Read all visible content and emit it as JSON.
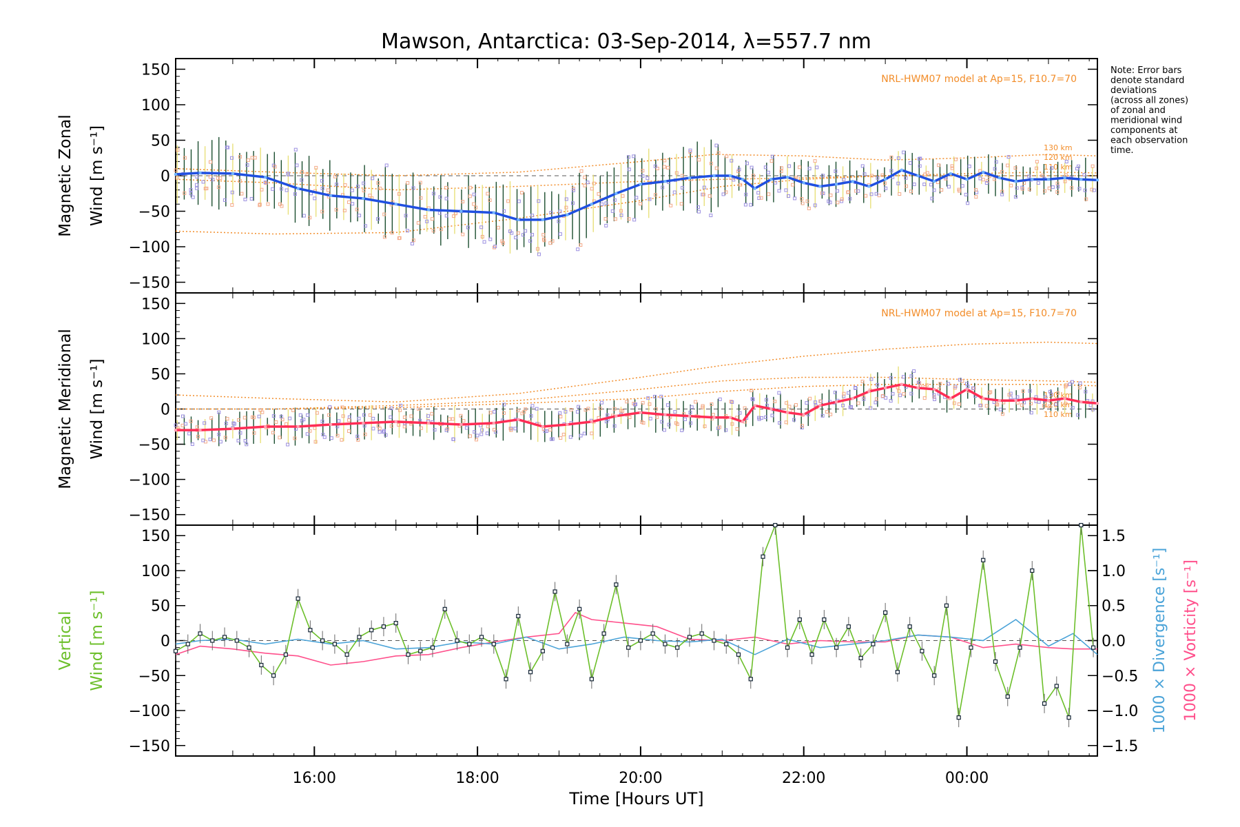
{
  "figure": {
    "title": "Mawson, Antarctica: 03-Sep-2014, λ=557.7 nm",
    "xlabel": "Time [Hours UT]",
    "x_ticks": [
      "16:00",
      "18:00",
      "20:00",
      "22:00",
      "00:00"
    ],
    "note": [
      "Note: Error bars",
      "denote standard",
      "deviations",
      "(across all zones)",
      "of zonal and",
      "meridional wind",
      "components at",
      "each observation",
      "time."
    ]
  },
  "colors": {
    "zonal": "#1f4fe0",
    "meridional": "#ff2d55",
    "vertical": "#6cbf2a",
    "divergence": "#4aa3d8",
    "vorticity": "#ff4f8b",
    "model": "#f28c28",
    "errorbar": "#1a4d2e",
    "zone_points": "#9b8fe0"
  },
  "chart_data": [
    {
      "type": "line",
      "panel": "zonal",
      "title": "",
      "ylabel": [
        "Magnetic Zonal",
        "Wind [m s⁻¹]"
      ],
      "ylim": [
        -165,
        165
      ],
      "y_ticks": [
        150,
        100,
        50,
        0,
        -50,
        -100,
        -150
      ],
      "xlim_hours": [
        14.3,
        25.6
      ],
      "annotation": "NRL-HWM07 model at Ap=15, F10.7=70",
      "model_labels": [
        "130 km",
        "120 km",
        "110 km"
      ],
      "series": [
        {
          "role": "mean-wind",
          "x": [
            14.3,
            14.6,
            15.0,
            15.4,
            15.8,
            16.2,
            16.6,
            17.0,
            17.4,
            17.8,
            18.2,
            18.5,
            18.8,
            19.1,
            19.4,
            19.7,
            20.0,
            20.3,
            20.6,
            20.9,
            21.1,
            21.25,
            21.4,
            21.6,
            21.8,
            22.0,
            22.2,
            22.4,
            22.6,
            22.8,
            23.0,
            23.2,
            23.4,
            23.6,
            23.8,
            24.0,
            24.2,
            24.4,
            24.6,
            24.8,
            25.0,
            25.2,
            25.4,
            25.6
          ],
          "y": [
            2,
            4,
            3,
            -2,
            -18,
            -28,
            -32,
            -40,
            -48,
            -50,
            -52,
            -62,
            -62,
            -55,
            -40,
            -25,
            -12,
            -8,
            -3,
            0,
            0,
            -5,
            -18,
            -5,
            -2,
            -10,
            -15,
            -12,
            -8,
            -15,
            -5,
            8,
            0,
            -8,
            3,
            -5,
            5,
            -3,
            -8,
            -5,
            -5,
            -3,
            -5,
            -6
          ]
        },
        {
          "role": "model-130km",
          "x": [
            14.3,
            15.5,
            17.0,
            18.5,
            20.0,
            20.9,
            22.0,
            23.0,
            24.0,
            25.0,
            25.6
          ],
          "y": [
            10,
            5,
            0,
            5,
            20,
            30,
            28,
            22,
            25,
            30,
            28
          ]
        },
        {
          "role": "model-120km",
          "x": [
            14.3,
            15.5,
            17.0,
            18.5,
            20.0,
            21.0,
            22.0,
            23.0,
            24.0,
            25.0,
            25.6
          ],
          "y": [
            -5,
            -10,
            -20,
            -15,
            -8,
            -5,
            -3,
            0,
            3,
            5,
            4
          ]
        },
        {
          "role": "model-110km",
          "x": [
            14.3,
            15.5,
            17.0,
            18.5,
            20.0,
            21.0,
            22.0,
            23.0,
            24.0,
            25.0,
            25.6
          ],
          "y": [
            -78,
            -82,
            -80,
            -60,
            -35,
            -15,
            -5,
            0,
            0,
            0,
            0
          ]
        }
      ]
    },
    {
      "type": "line",
      "panel": "meridional",
      "title": "",
      "ylabel": [
        "Magnetic Meridional",
        "Wind [m s⁻¹]"
      ],
      "ylim": [
        -165,
        165
      ],
      "y_ticks": [
        150,
        100,
        50,
        0,
        -50,
        -100,
        -150
      ],
      "xlim_hours": [
        14.3,
        25.6
      ],
      "annotation": "NRL-HWM07 model at Ap=15, F10.7=70",
      "model_labels": [
        "130 km",
        "120 km",
        "110 km"
      ],
      "series": [
        {
          "role": "mean-wind",
          "x": [
            14.3,
            14.6,
            15.0,
            15.4,
            15.8,
            16.2,
            16.6,
            17.0,
            17.4,
            17.8,
            18.2,
            18.5,
            18.8,
            19.1,
            19.4,
            19.7,
            20.0,
            20.3,
            20.6,
            20.9,
            21.1,
            21.25,
            21.4,
            21.6,
            21.8,
            22.0,
            22.2,
            22.4,
            22.6,
            22.8,
            23.0,
            23.2,
            23.4,
            23.6,
            23.8,
            24.0,
            24.2,
            24.4,
            24.6,
            24.8,
            25.0,
            25.2,
            25.4,
            25.6
          ],
          "y": [
            -30,
            -30,
            -28,
            -25,
            -25,
            -22,
            -20,
            -18,
            -20,
            -22,
            -20,
            -15,
            -25,
            -22,
            -18,
            -10,
            -5,
            -8,
            -10,
            -12,
            -12,
            -18,
            5,
            0,
            -5,
            -8,
            5,
            10,
            15,
            25,
            30,
            35,
            30,
            28,
            15,
            28,
            15,
            12,
            12,
            15,
            12,
            15,
            10,
            8
          ]
        },
        {
          "role": "model-130km",
          "x": [
            14.3,
            15.5,
            17.0,
            18.5,
            20.0,
            21.0,
            22.0,
            23.0,
            24.0,
            25.0,
            25.6
          ],
          "y": [
            20,
            15,
            10,
            22,
            45,
            62,
            75,
            85,
            92,
            95,
            93
          ]
        },
        {
          "role": "model-120km",
          "x": [
            14.3,
            15.5,
            17.0,
            18.5,
            20.0,
            21.0,
            22.0,
            23.0,
            24.0,
            25.0,
            25.6
          ],
          "y": [
            0,
            0,
            5,
            12,
            28,
            40,
            45,
            45,
            42,
            40,
            38
          ]
        },
        {
          "role": "model-110km",
          "x": [
            14.3,
            15.5,
            17.0,
            18.5,
            20.0,
            21.0,
            22.0,
            23.0,
            24.0,
            25.0,
            25.6
          ],
          "y": [
            0,
            0,
            2,
            8,
            15,
            25,
            32,
            35,
            35,
            35,
            33
          ]
        }
      ]
    },
    {
      "type": "line",
      "panel": "vertical",
      "title": "",
      "ylabel": [
        "Vertical",
        "Wind [m s⁻¹]"
      ],
      "ylim": [
        -165,
        165
      ],
      "y_ticks": [
        150,
        100,
        50,
        0,
        -50,
        -100,
        -150
      ],
      "y2label_divergence": "1000 × Divergence [s⁻¹]",
      "y2label_vorticity": "1000 × Vorticity [s⁻¹]",
      "y2lim": [
        -1.65,
        1.65
      ],
      "y2_ticks": [
        "1.5",
        "1.0",
        "0.5",
        "0.0",
        "−0.5",
        "−1.0",
        "−1.5"
      ],
      "xlim_hours": [
        14.3,
        25.6
      ],
      "series": [
        {
          "role": "vertical-wind",
          "axis": "left",
          "x": [
            14.3,
            14.45,
            14.6,
            14.75,
            14.9,
            15.05,
            15.2,
            15.35,
            15.5,
            15.65,
            15.8,
            15.95,
            16.1,
            16.25,
            16.4,
            16.55,
            16.7,
            16.85,
            17.0,
            17.15,
            17.3,
            17.45,
            17.6,
            17.75,
            17.9,
            18.05,
            18.2,
            18.35,
            18.5,
            18.65,
            18.8,
            18.95,
            19.1,
            19.25,
            19.4,
            19.55,
            19.7,
            19.85,
            20.0,
            20.15,
            20.3,
            20.45,
            20.6,
            20.75,
            20.9,
            21.05,
            21.2,
            21.35,
            21.5,
            21.65,
            21.8,
            21.95,
            22.1,
            22.25,
            22.4,
            22.55,
            22.7,
            22.85,
            23.0,
            23.15,
            23.3,
            23.45,
            23.6,
            23.75,
            23.9,
            24.05,
            24.2,
            24.35,
            24.5,
            24.65,
            24.8,
            24.95,
            25.1,
            25.25,
            25.4,
            25.55
          ],
          "y": [
            -15,
            -5,
            10,
            0,
            5,
            0,
            -10,
            -35,
            -50,
            -20,
            60,
            15,
            0,
            -5,
            -20,
            5,
            15,
            20,
            25,
            -20,
            -15,
            -10,
            45,
            0,
            -5,
            5,
            -5,
            -55,
            35,
            -45,
            -15,
            70,
            -5,
            45,
            -55,
            10,
            80,
            -10,
            0,
            10,
            -5,
            -10,
            5,
            10,
            0,
            -5,
            -20,
            -55,
            120,
            165,
            -10,
            30,
            -20,
            30,
            -10,
            20,
            -25,
            -5,
            40,
            -45,
            20,
            -15,
            -50,
            50,
            -110,
            -10,
            115,
            -30,
            -80,
            -10,
            100,
            -90,
            -65,
            -110,
            165,
            -10
          ]
        },
        {
          "role": "divergence",
          "axis": "right",
          "x": [
            14.3,
            14.6,
            15.0,
            15.4,
            15.8,
            16.2,
            16.6,
            17.0,
            17.4,
            17.8,
            18.2,
            18.6,
            19.0,
            19.4,
            19.8,
            20.2,
            20.6,
            21.0,
            21.4,
            21.8,
            22.2,
            22.6,
            23.0,
            23.4,
            23.8,
            24.2,
            24.6,
            25.0,
            25.3,
            25.6
          ],
          "y": [
            -0.05,
            0.0,
            0.02,
            -0.05,
            0.02,
            -0.05,
            0.0,
            -0.12,
            -0.1,
            -0.02,
            -0.05,
            0.05,
            -0.12,
            -0.05,
            0.05,
            0.0,
            -0.02,
            0.02,
            -0.2,
            0.02,
            -0.1,
            -0.05,
            0.0,
            0.08,
            0.05,
            0.0,
            0.3,
            -0.08,
            0.1,
            -0.2
          ]
        },
        {
          "role": "vorticity",
          "axis": "right",
          "x": [
            14.3,
            14.6,
            15.0,
            15.4,
            15.8,
            16.2,
            16.6,
            17.0,
            17.4,
            17.8,
            18.2,
            18.6,
            19.0,
            19.2,
            19.4,
            19.8,
            20.2,
            20.6,
            21.0,
            21.4,
            21.8,
            22.2,
            22.6,
            23.0,
            23.4,
            23.8,
            24.2,
            24.6,
            25.0,
            25.3,
            25.6
          ],
          "y": [
            -0.2,
            -0.08,
            -0.12,
            -0.18,
            -0.22,
            -0.35,
            -0.3,
            -0.22,
            -0.2,
            -0.1,
            -0.02,
            0.05,
            0.1,
            0.4,
            0.3,
            0.25,
            0.2,
            0.02,
            0.0,
            0.05,
            -0.05,
            0.0,
            -0.02,
            -0.02,
            0.08,
            0.05,
            -0.1,
            -0.05,
            -0.1,
            -0.12,
            -0.12
          ]
        }
      ]
    }
  ]
}
